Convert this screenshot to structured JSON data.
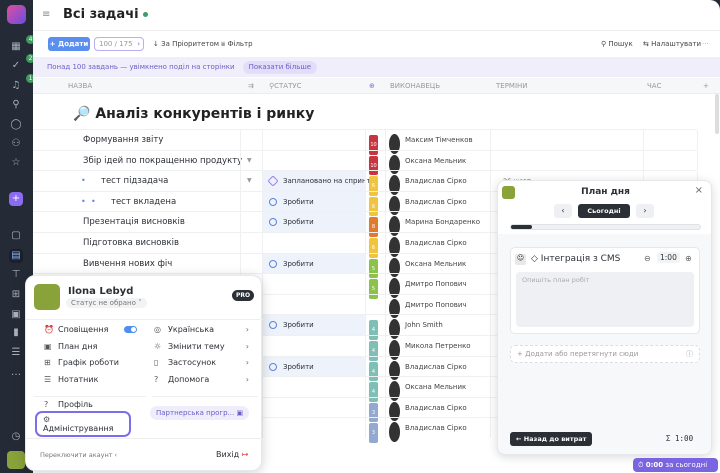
{
  "sidebar": {
    "badges": [
      "4",
      "2",
      "1"
    ],
    "icons": [
      "dashboard-icon",
      "tasks-icon",
      "bell-icon",
      "search-icon",
      "chat-icon",
      "users-icon",
      "star-icon",
      "add-icon",
      "briefcase-icon",
      "table-icon",
      "board-icon",
      "people-board-icon",
      "projects-icon",
      "chart-icon",
      "gantt-icon",
      "more-icon",
      "timer-icon"
    ]
  },
  "header": {
    "title": "Всі задачі"
  },
  "toolbar": {
    "add": "+ Додати",
    "pager": "100 / 175",
    "sort": "За Пріоритетом",
    "filter": "Фільтр",
    "search": "Пошук",
    "settings": "Налаштувати",
    "more": "···"
  },
  "banner": {
    "text": "Понад 100 завдань — увімкнено поділ на сторінки",
    "show_more": "Показати більше"
  },
  "columns": {
    "name": "НАЗВА",
    "status": "СТАТУС",
    "assignee": "ВИКОНАВЕЦЬ",
    "terms": "ТЕРМІНИ",
    "time": "ЧАС",
    "add": "+"
  },
  "group": {
    "icon": "🔎",
    "title": "Аналіз конкурентів і ринку"
  },
  "rows": [
    {
      "name": "Формування звіту",
      "indent": 0,
      "chevron": false,
      "status": "",
      "priority": "10",
      "pcolor": "#c8353f",
      "assignee": "Максим Тімченков",
      "terms": ""
    },
    {
      "name": "Збір ідей по покращенню продукту",
      "indent": 0,
      "chevron": true,
      "status": "",
      "priority": "10",
      "pcolor": "#c8353f",
      "assignee": "Оксана Мельник",
      "terms": ""
    },
    {
      "name": "тест підзадача",
      "indent": 1,
      "chevron": true,
      "status": "Заплановано на спринт",
      "priority": "6",
      "pcolor": "#f0c43c",
      "assignee": "Владислав Сірко",
      "terms": "26 жовт"
    },
    {
      "name": "тест вкладена",
      "indent": 2,
      "chevron": false,
      "status": "Зробити",
      "priority": "6",
      "pcolor": "#f0c43c",
      "assignee": "Владислав Сірко",
      "terms": ""
    },
    {
      "name": "Презентація висновків",
      "indent": 0,
      "chevron": false,
      "status": "Зробити",
      "priority": "8",
      "pcolor": "#e07a2e",
      "assignee": "Марина Бондаренко",
      "terms": ""
    },
    {
      "name": "Підготовка висновків",
      "indent": 0,
      "chevron": false,
      "status": "",
      "priority": "6",
      "pcolor": "#f0c43c",
      "assignee": "Владислав Сірко",
      "terms": ""
    },
    {
      "name": "Вивчення нових фіч",
      "indent": 0,
      "chevron": false,
      "status": "Зробити",
      "priority": "5",
      "pcolor": "#8bc34a",
      "assignee": "Оксана Мельник",
      "terms": ""
    },
    {
      "name": "",
      "indent": 0,
      "chevron": false,
      "status": "",
      "priority": "5",
      "pcolor": "#8bc34a",
      "assignee": "Дмитро Попович",
      "terms": ""
    },
    {
      "name": "",
      "indent": 0,
      "chevron": false,
      "status": "",
      "priority": "",
      "pcolor": "",
      "assignee": "Дмитро Попович",
      "terms": ""
    },
    {
      "name": "",
      "indent": 0,
      "chevron": false,
      "status": "Зробити",
      "priority": "4",
      "pcolor": "#7fbfb5",
      "assignee": "John Smith",
      "terms": ""
    },
    {
      "name": "",
      "indent": 0,
      "chevron": false,
      "status": "",
      "priority": "4",
      "pcolor": "#7fbfb5",
      "assignee": "Микола Петренко",
      "terms": ""
    },
    {
      "name": "",
      "indent": 0,
      "chevron": false,
      "status": "Зробити",
      "priority": "4",
      "pcolor": "#7fbfb5",
      "assignee": "Владислав Сірко",
      "terms": ""
    },
    {
      "name": "",
      "indent": 0,
      "chevron": false,
      "status": "",
      "priority": "4",
      "pcolor": "#7fbfb5",
      "assignee": "Оксана Мельник",
      "terms": ""
    },
    {
      "name": "",
      "indent": 0,
      "chevron": false,
      "status": "",
      "priority": "3",
      "pcolor": "#93a9cf",
      "assignee": "Владислав Сірко",
      "terms": ""
    },
    {
      "name": "",
      "indent": 0,
      "chevron": false,
      "status": "",
      "priority": "3",
      "pcolor": "#93a9cf",
      "assignee": "Владислав Сірко",
      "terms": ""
    }
  ],
  "profile": {
    "name": "Ilona Lebyd",
    "status": "Статус не обрано",
    "badge": "PRO",
    "left": [
      {
        "icon": "alarm-icon",
        "label": "Сповіщення"
      },
      {
        "icon": "calendar-icon",
        "label": "План дня"
      },
      {
        "icon": "schedule-icon",
        "label": "Графік роботи"
      },
      {
        "icon": "notepad-icon",
        "label": "Нотатник"
      }
    ],
    "right": [
      {
        "icon": "globe-icon",
        "label": "Українська"
      },
      {
        "icon": "sun-icon",
        "label": "Змінити тему"
      },
      {
        "icon": "phone-icon",
        "label": "Застосунок"
      },
      {
        "icon": "help-icon",
        "label": "Допомога"
      }
    ],
    "notifications_on": true,
    "profile_link": "Профіль",
    "admin": "Адміністрування",
    "partner": "Партнерська прогр...",
    "switch": "Переключити акаунт",
    "logout": "Вихід"
  },
  "dayplan": {
    "title": "План дня",
    "today": "Сьогодні",
    "progress": 0.11,
    "task": "Інтеграція з CMS",
    "time": "1:00",
    "placeholder": "Опишіть план робіт",
    "add": "Додати або перетягнути сюди",
    "back": "Назад до витрат",
    "total": "Σ 1:00"
  },
  "timer": {
    "value": "0:00",
    "label": "за сьогодні"
  },
  "colors": {
    "accent": "#6b5ce7",
    "primary": "#5a8ff0",
    "sidebar": "#242b36"
  }
}
